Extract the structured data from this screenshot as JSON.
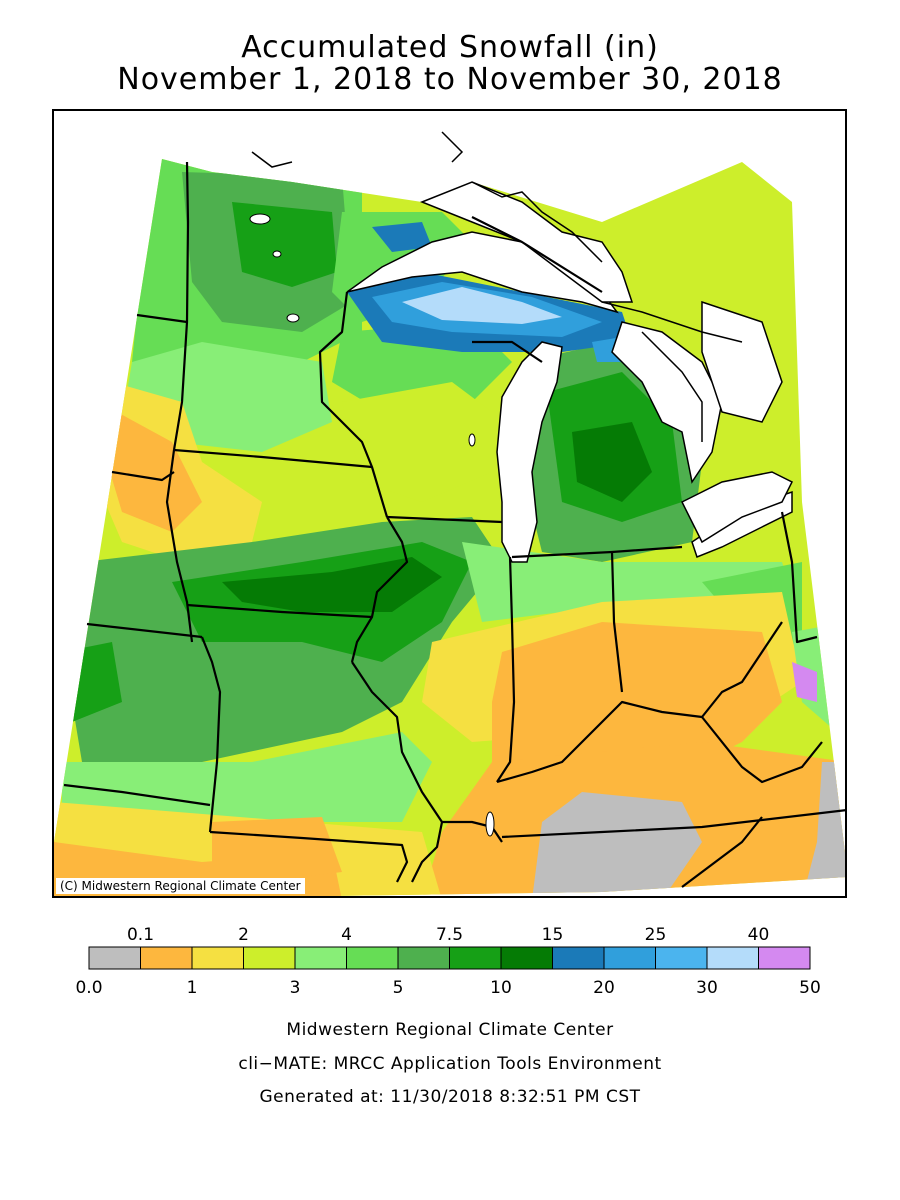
{
  "title": {
    "line1": "Accumulated Snowfall (in)",
    "line2": "November 1, 2018 to November 30, 2018"
  },
  "map": {
    "copyright": "(C) Midwestern Regional Climate Center",
    "region": "Midwest United States",
    "land_color": "#ffffff",
    "water_color": "#ffffff"
  },
  "legend": {
    "top_labels": [
      "0.1",
      "2",
      "4",
      "7.5",
      "15",
      "25",
      "40"
    ],
    "bottom_labels": [
      "0.0",
      "1",
      "3",
      "5",
      "10",
      "20",
      "30",
      "50"
    ],
    "colors": [
      "#bebebe",
      "#fdb73e",
      "#f5e041",
      "#cdee2b",
      "#88ee77",
      "#66dd55",
      "#4eb04e",
      "#16a016",
      "#057b05",
      "#1b7ab8",
      "#309fdc",
      "#4bb4ee",
      "#b4dcfa",
      "#d489f0"
    ]
  },
  "footer": {
    "line1": "Midwestern Regional Climate Center",
    "line2": "cli−MATE: MRCC Application Tools Environment",
    "line3": "Generated at: 11/30/2018 8:32:51 PM CST"
  }
}
